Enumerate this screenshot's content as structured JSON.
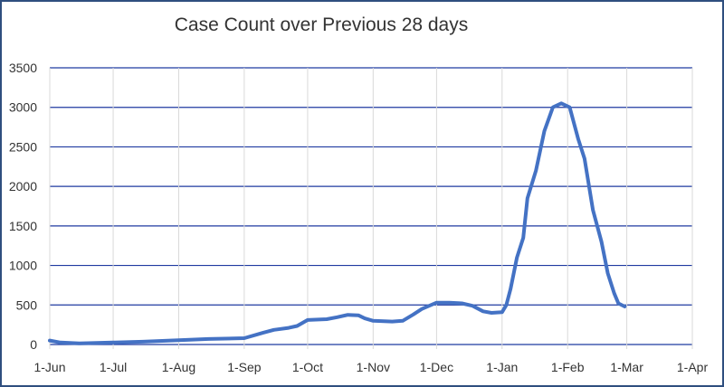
{
  "chart_data": {
    "type": "line",
    "title": "Case Count over Previous 28 days",
    "xlabel": "",
    "ylabel": "",
    "ylim": [
      0,
      3500
    ],
    "yticks": [
      0,
      500,
      1000,
      1500,
      2000,
      2500,
      3000,
      3500
    ],
    "x_tick_labels": [
      "1-Jun",
      "1-Jul",
      "1-Aug",
      "1-Sep",
      "1-Oct",
      "1-Nov",
      "1-Dec",
      "1-Jan",
      "1-Feb",
      "1-Mar",
      "1-Apr"
    ],
    "grid": "horizontal",
    "legend": "none",
    "line_color": "#4472c4",
    "gridline_color": "#1f3aa0",
    "series": [
      {
        "points": [
          [
            "1-Jun",
            50
          ],
          [
            "6-Jun",
            25
          ],
          [
            "15-Jun",
            15
          ],
          [
            "1-Jul",
            25
          ],
          [
            "15-Jul",
            35
          ],
          [
            "1-Aug",
            55
          ],
          [
            "15-Aug",
            70
          ],
          [
            "1-Sep",
            80
          ],
          [
            "10-Sep",
            150
          ],
          [
            "15-Sep",
            185
          ],
          [
            "22-Sep",
            210
          ],
          [
            "26-Sep",
            235
          ],
          [
            "1-Oct",
            310
          ],
          [
            "10-Oct",
            320
          ],
          [
            "15-Oct",
            345
          ],
          [
            "20-Oct",
            375
          ],
          [
            "25-Oct",
            370
          ],
          [
            "28-Oct",
            330
          ],
          [
            "1-Nov",
            300
          ],
          [
            "10-Nov",
            290
          ],
          [
            "15-Nov",
            300
          ],
          [
            "20-Nov",
            380
          ],
          [
            "24-Nov",
            450
          ],
          [
            "1-Dec",
            530
          ],
          [
            "7-Dec",
            530
          ],
          [
            "13-Dec",
            520
          ],
          [
            "18-Dec",
            490
          ],
          [
            "23-Dec",
            420
          ],
          [
            "27-Dec",
            400
          ],
          [
            "1-Jan",
            410
          ],
          [
            "3-Jan",
            500
          ],
          [
            "5-Jan",
            700
          ],
          [
            "8-Jan",
            1100
          ],
          [
            "11-Jan",
            1350
          ],
          [
            "13-Jan",
            1850
          ],
          [
            "17-Jan",
            2200
          ],
          [
            "21-Jan",
            2700
          ],
          [
            "25-Jan",
            3000
          ],
          [
            "29-Jan",
            3050
          ],
          [
            "2-Feb",
            3000
          ],
          [
            "6-Feb",
            2600
          ],
          [
            "9-Feb",
            2350
          ],
          [
            "13-Feb",
            1700
          ],
          [
            "17-Feb",
            1300
          ],
          [
            "20-Feb",
            900
          ],
          [
            "23-Feb",
            650
          ],
          [
            "25-Feb",
            520
          ],
          [
            "28-Feb",
            480
          ]
        ]
      }
    ]
  }
}
